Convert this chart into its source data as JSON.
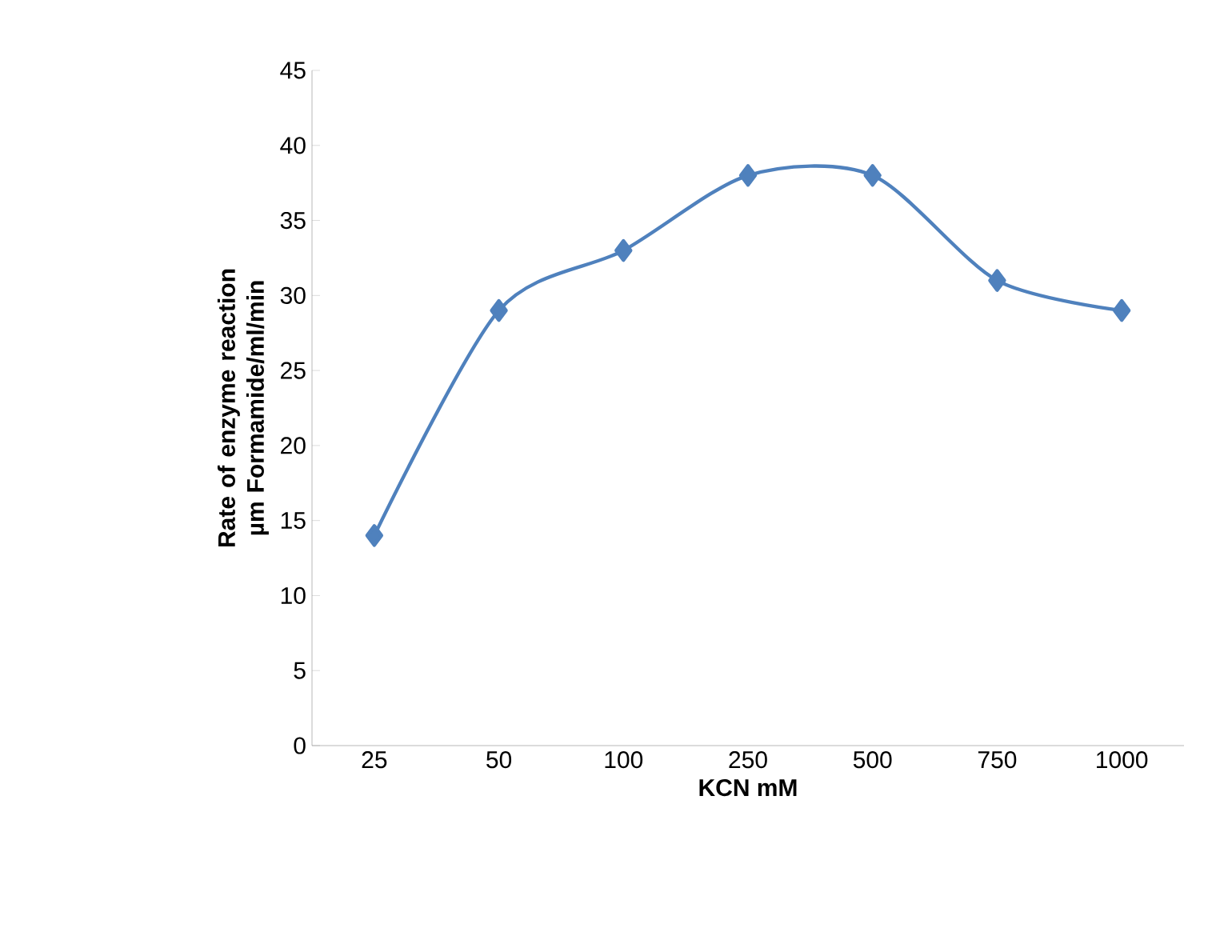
{
  "chart_data": {
    "type": "line",
    "xlabel": "KCN  mM",
    "ylabel": "Rate of enzyme reaction µm Formamide/ml/min",
    "categories": [
      "25",
      "50",
      "100",
      "250",
      "500",
      "750",
      "1000"
    ],
    "values": [
      14,
      29,
      33,
      38,
      38,
      31,
      29
    ],
    "color": "#4f81bd",
    "marker": "diamond",
    "line_style": "solid",
    "ylim": [
      0,
      45
    ],
    "yticks": [
      0,
      5,
      10,
      15,
      20,
      25,
      30,
      35,
      40,
      45
    ]
  }
}
